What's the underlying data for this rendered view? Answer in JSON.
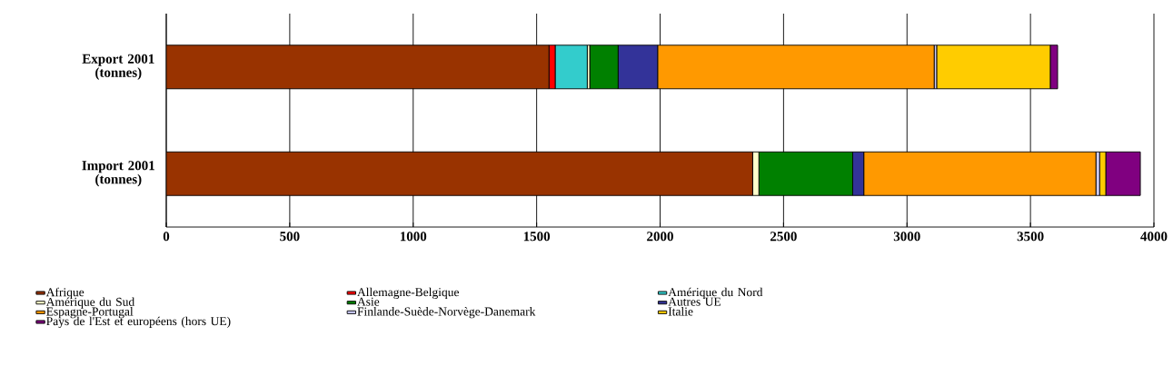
{
  "chart_data": {
    "type": "bar",
    "orientation": "horizontal",
    "stacked": true,
    "categories": [
      "Export 2001 (tonnes)",
      "Import 2001 (tonnes)"
    ],
    "series": [
      {
        "name": "Afrique",
        "color": "#993300",
        "values": [
          1550,
          2375
        ]
      },
      {
        "name": "Allemagne-Belgique",
        "color": "#ff0000",
        "values": [
          25,
          0
        ]
      },
      {
        "name": "Amérique du Nord",
        "color": "#33cccc",
        "values": [
          130,
          0
        ]
      },
      {
        "name": "Amérique du Sud",
        "color": "#ffffcc",
        "values": [
          10,
          25
        ]
      },
      {
        "name": "Asie",
        "color": "#008000",
        "values": [
          115,
          380
        ]
      },
      {
        "name": "Autres UE",
        "color": "#333399",
        "values": [
          160,
          45
        ]
      },
      {
        "name": "Espagne-Portugal",
        "color": "#ff9900",
        "values": [
          1120,
          940
        ]
      },
      {
        "name": "Finlande-Suède-Norvège-Danemark",
        "color": "#ccccff",
        "values": [
          10,
          15
        ]
      },
      {
        "name": "Italie",
        "color": "#ffcc00",
        "values": [
          460,
          25
        ]
      },
      {
        "name": "Pays de l'Est et européens (hors UE)",
        "color": "#800080",
        "values": [
          30,
          140
        ]
      }
    ],
    "xlim": [
      0,
      4000
    ],
    "xticks": [
      0,
      500,
      1000,
      1500,
      2000,
      2500,
      3000,
      3500,
      4000
    ],
    "grid": "x",
    "legend": "bottom"
  }
}
